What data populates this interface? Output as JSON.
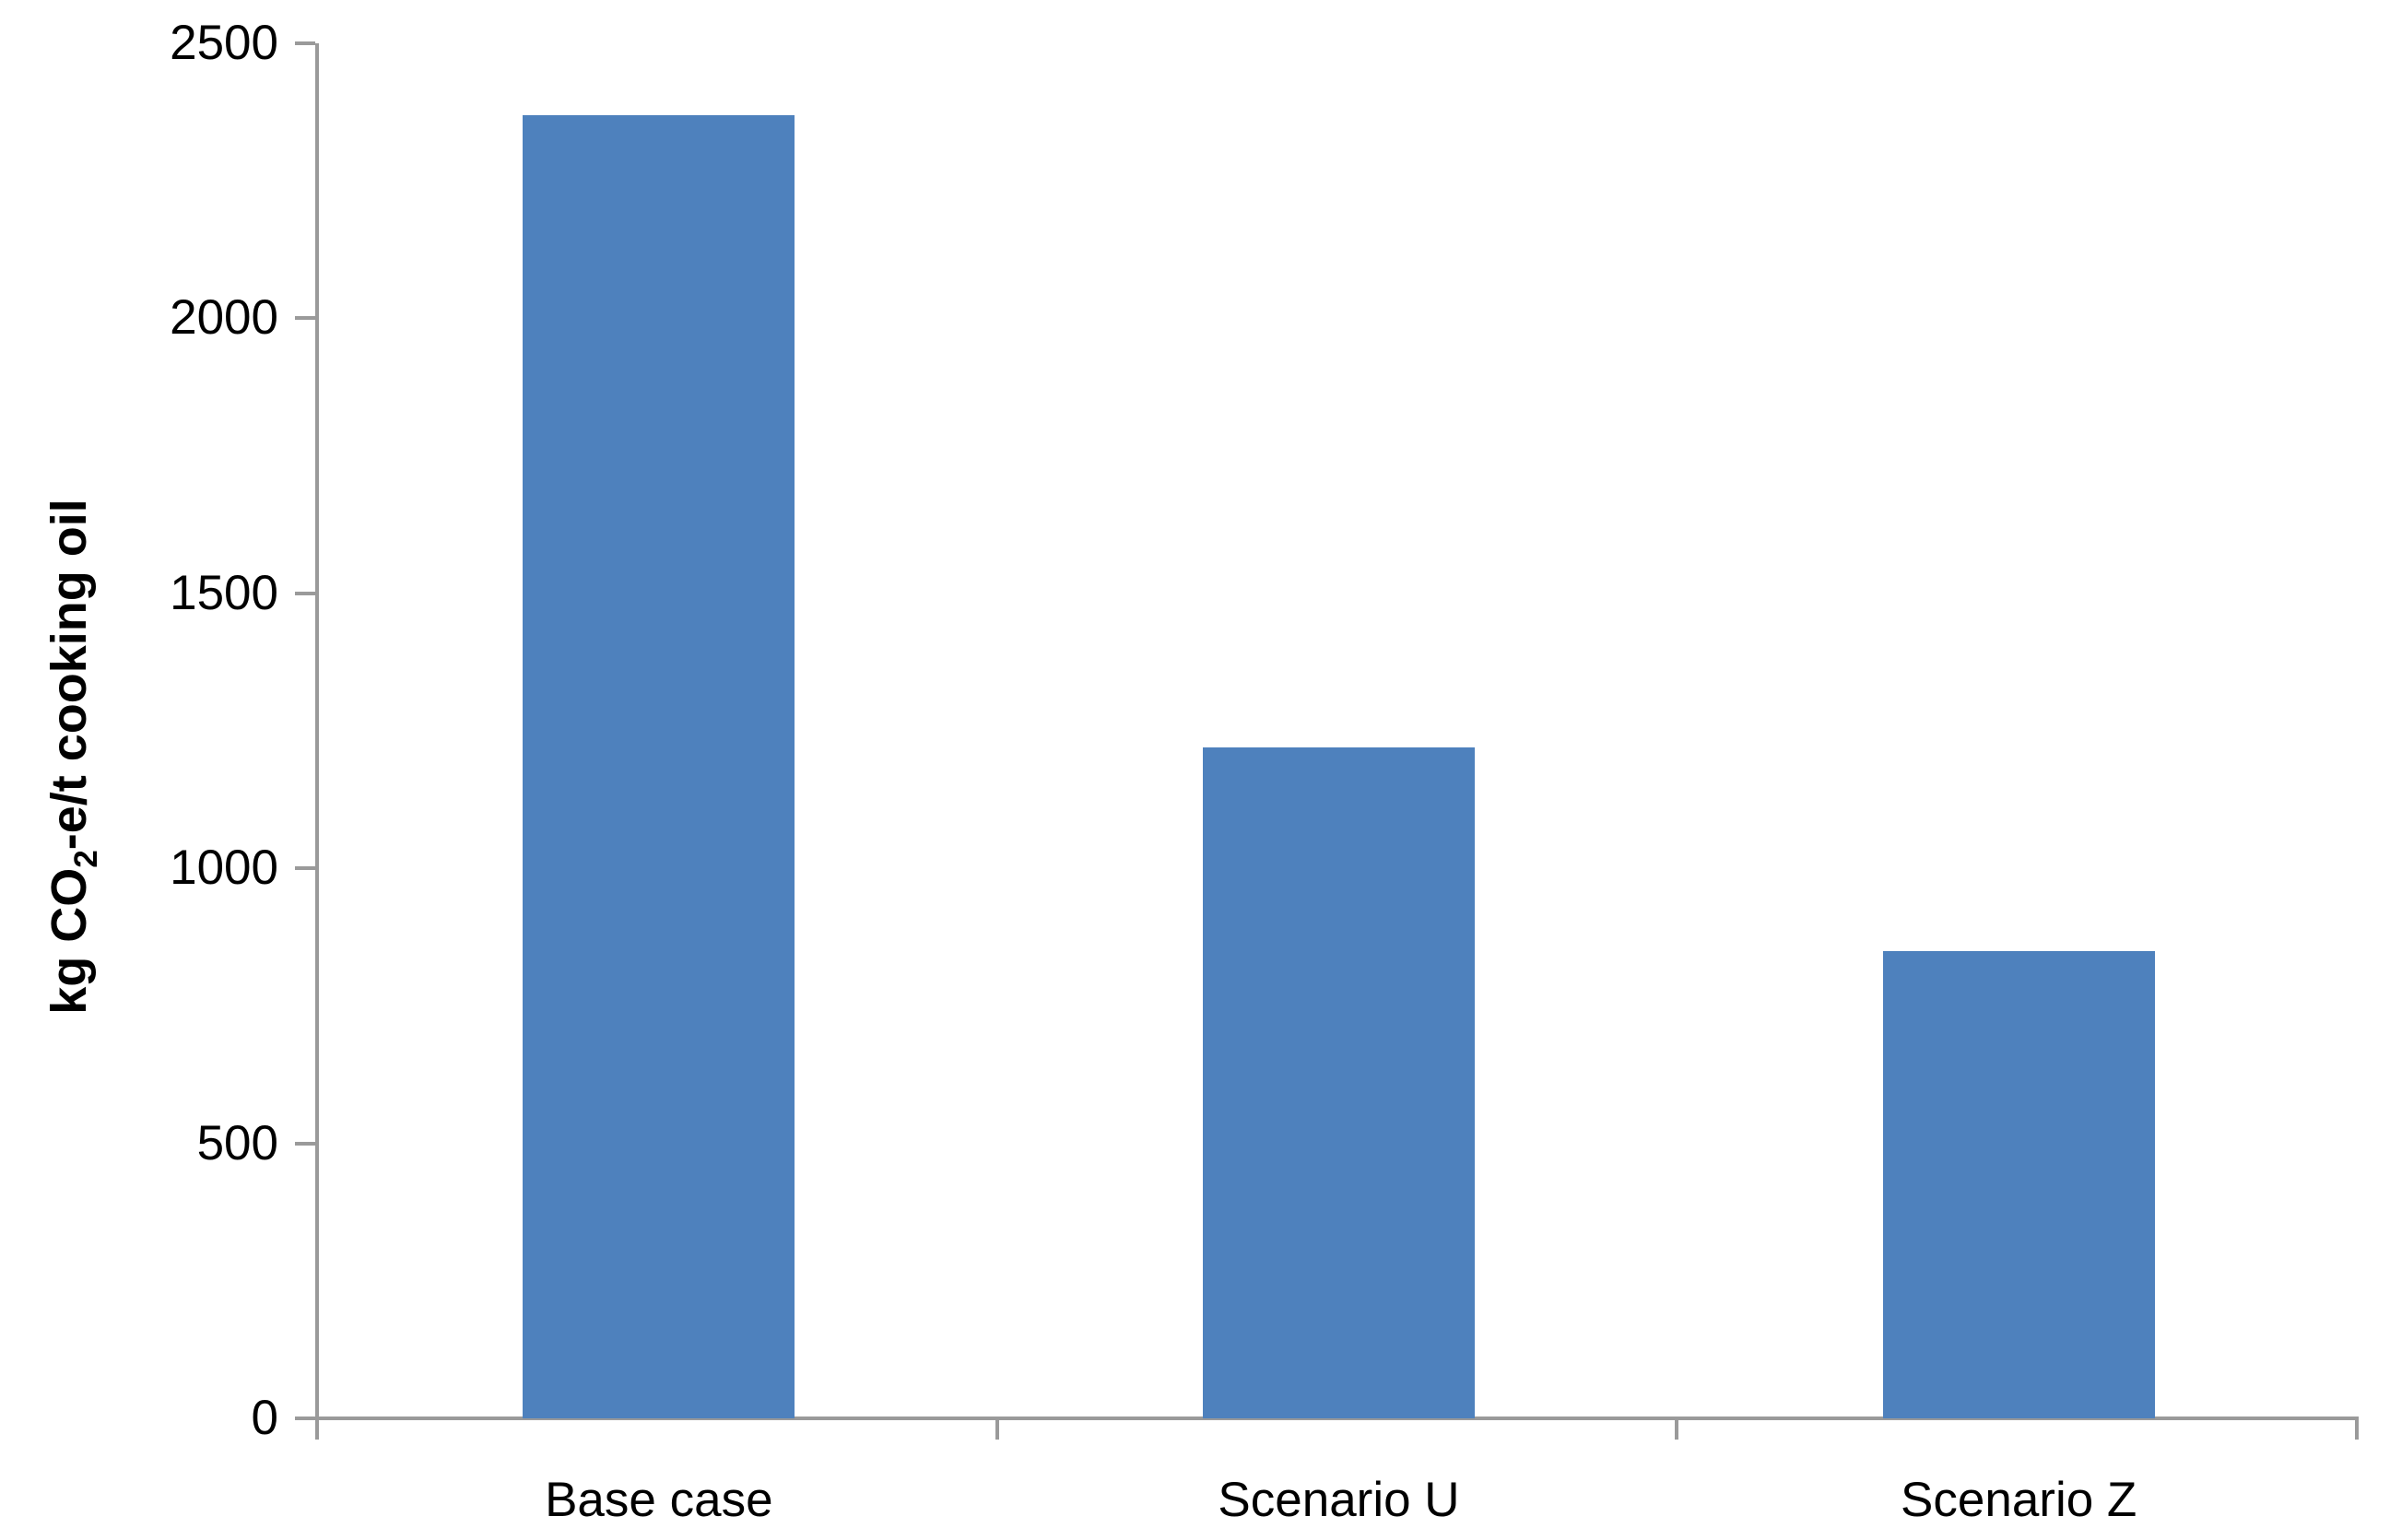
{
  "chart_data": {
    "type": "bar",
    "categories": [
      "Base case",
      "Scenario U",
      "Scenario Z"
    ],
    "values": [
      2370,
      1220,
      850
    ],
    "title": "",
    "xlabel": "",
    "ylabel": "kg CO2-e/t cooking oil",
    "ylabel_parts": {
      "prefix": "kg CO",
      "sub": "2",
      "suffix": "-e/t cooking oil"
    },
    "ylim": [
      0,
      2500
    ],
    "yticks": [
      0,
      500,
      1000,
      1500,
      2000,
      2500
    ],
    "grid": false,
    "legend": false,
    "bar_color": "#4E81BD",
    "axis_color": "#9A9A9A",
    "text_color": "#000000"
  }
}
